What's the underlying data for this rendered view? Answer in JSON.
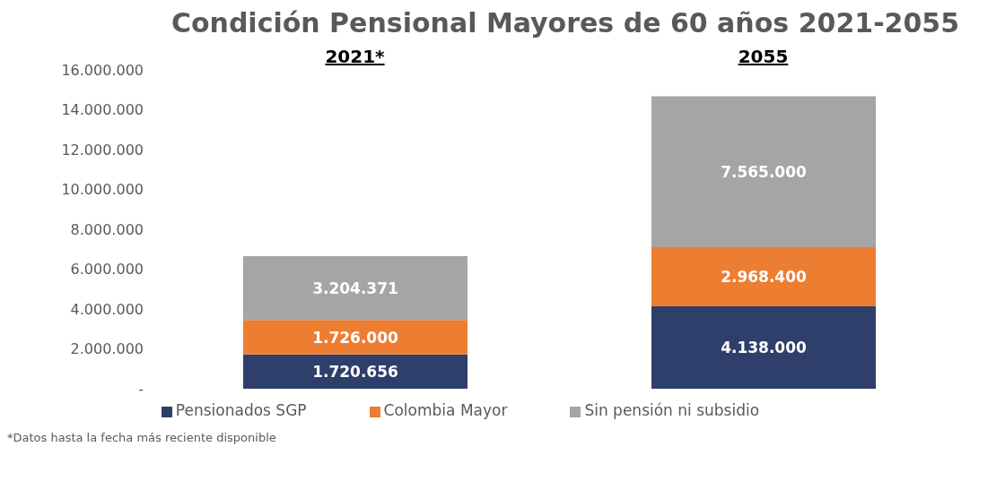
{
  "chart_data": {
    "type": "bar",
    "stacked": true,
    "title": "Condición Pensional Mayores de 60 años 2021-2055",
    "categories": [
      "2021*",
      "2055"
    ],
    "series": [
      {
        "name": "Pensionados SGP",
        "color": "#2f3f6b",
        "values": [
          1720656,
          4138000
        ],
        "value_labels": [
          "1.720.656",
          "4.138.000"
        ]
      },
      {
        "name": "Colombia Mayor",
        "color": "#ed7d31",
        "values": [
          1726000,
          2968400
        ],
        "value_labels": [
          "1.726.000",
          "2.968.400"
        ]
      },
      {
        "name": "Sin pensión ni subsidio",
        "color": "#a5a5a5",
        "values": [
          3204371,
          7565000
        ],
        "value_labels": [
          "3.204.371",
          "7.565.000"
        ]
      }
    ],
    "ylim": [
      0,
      16000000
    ],
    "yticks": [
      {
        "value": 0,
        "label": "-"
      },
      {
        "value": 2000000,
        "label": "2.000.000"
      },
      {
        "value": 4000000,
        "label": "4.000.000"
      },
      {
        "value": 6000000,
        "label": "6.000.000"
      },
      {
        "value": 8000000,
        "label": "8.000.000"
      },
      {
        "value": 10000000,
        "label": "10.000.000"
      },
      {
        "value": 12000000,
        "label": "12.000.000"
      },
      {
        "value": 14000000,
        "label": "14.000.000"
      },
      {
        "value": 16000000,
        "label": "16.000.000"
      }
    ],
    "grid": false,
    "legend": "bottom",
    "annotations": [
      "*Datos hasta la fecha más reciente disponible"
    ]
  }
}
